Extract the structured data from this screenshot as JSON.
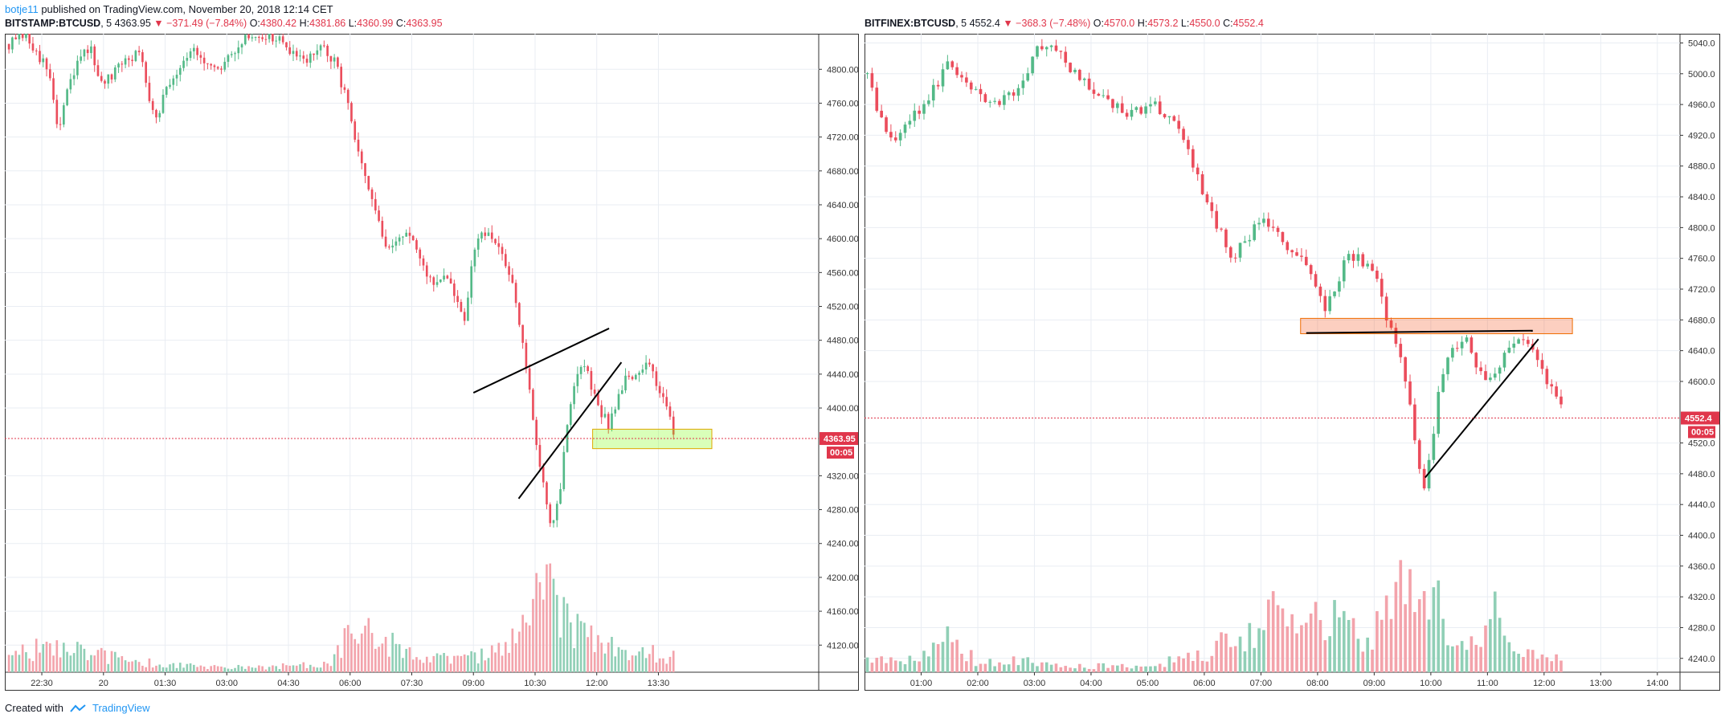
{
  "header": {
    "author": "botje11",
    "published": "published on TradingView.com, November 20, 2018 12:14 CET"
  },
  "footer": {
    "created_with": "Created with",
    "brand": "TradingView"
  },
  "colors": {
    "up": "#53b987",
    "down": "#eb4d5c",
    "up_vol": "#90cfb6",
    "down_vol": "#f3a3ab",
    "grid": "#e9edf3",
    "last_price": "#e0364b"
  },
  "chart_data": [
    {
      "type": "candlestick",
      "symbol": "BITSTAMP:BTCUSD",
      "interval": "5",
      "summary": {
        "last": "4363.95",
        "change": "−371.49 (−7.84%)",
        "open": "4380.42",
        "high": "4381.86",
        "low": "4360.99",
        "close": "4363.95"
      },
      "last_price_label": "4363.95",
      "countdown": "00:05",
      "y_ticks": [
        4800,
        4760,
        4720,
        4680,
        4640,
        4600,
        4560,
        4520,
        4480,
        4440,
        4400,
        4320,
        4280,
        4240,
        4200,
        4160,
        4120
      ],
      "y_tick_labels": [
        "4800.00",
        "4760.00",
        "4720.00",
        "4680.00",
        "4640.00",
        "4600.00",
        "4560.00",
        "4520.00",
        "4480.00",
        "4440.00",
        "4400.00",
        "4320.00",
        "4280.00",
        "4240.00",
        "4200.00",
        "4160.00",
        "4120.00"
      ],
      "x_ticks": [
        "22:30",
        "20",
        "01:30",
        "03:00",
        "04:30",
        "06:00",
        "07:30",
        "09:00",
        "10:30",
        "12:00",
        "13:30"
      ],
      "x_tick_hours": [
        -1.5,
        0,
        1.5,
        3,
        4.5,
        6,
        7.5,
        9,
        10.5,
        12,
        13.5
      ],
      "x_range_hours": [
        -2.4,
        17.4
      ],
      "y_range": [
        4088,
        4842
      ],
      "price_path": [
        [
          -2.3,
          4830
        ],
        [
          -1.9,
          4840
        ],
        [
          -1.6,
          4820
        ],
        [
          -1.3,
          4790
        ],
        [
          -1.1,
          4725
        ],
        [
          -0.9,
          4770
        ],
        [
          -0.6,
          4810
        ],
        [
          -0.3,
          4830
        ],
        [
          -0.1,
          4780
        ],
        [
          0.2,
          4790
        ],
        [
          0.5,
          4810
        ],
        [
          0.9,
          4820
        ],
        [
          1.1,
          4770
        ],
        [
          1.3,
          4745
        ],
        [
          1.5,
          4775
        ],
        [
          1.8,
          4800
        ],
        [
          2.0,
          4815
        ],
        [
          2.2,
          4830
        ],
        [
          2.4,
          4805
        ],
        [
          2.6,
          4800
        ],
        [
          2.8,
          4795
        ],
        [
          3.0,
          4810
        ],
        [
          3.3,
          4830
        ],
        [
          3.6,
          4840
        ],
        [
          4.0,
          4840
        ],
        [
          4.4,
          4830
        ],
        [
          4.7,
          4810
        ],
        [
          5.0,
          4815
        ],
        [
          5.3,
          4825
        ],
        [
          5.6,
          4810
        ],
        [
          5.9,
          4770
        ],
        [
          6.1,
          4720
        ],
        [
          6.3,
          4680
        ],
        [
          6.5,
          4650
        ],
        [
          6.7,
          4620
        ],
        [
          6.9,
          4580
        ],
        [
          7.1,
          4595
        ],
        [
          7.3,
          4610
        ],
        [
          7.5,
          4600
        ],
        [
          7.7,
          4570
        ],
        [
          7.9,
          4555
        ],
        [
          8.1,
          4545
        ],
        [
          8.3,
          4560
        ],
        [
          8.5,
          4540
        ],
        [
          8.7,
          4510
        ],
        [
          8.8,
          4495
        ],
        [
          8.9,
          4550
        ],
        [
          9.1,
          4600
        ],
        [
          9.3,
          4605
        ],
        [
          9.5,
          4595
        ],
        [
          9.7,
          4580
        ],
        [
          9.9,
          4560
        ],
        [
          10.1,
          4500
        ],
        [
          10.3,
          4445
        ],
        [
          10.45,
          4380
        ],
        [
          10.6,
          4335
        ],
        [
          10.75,
          4300
        ],
        [
          10.9,
          4260
        ],
        [
          11.1,
          4300
        ],
        [
          11.3,
          4390
        ],
        [
          11.5,
          4440
        ],
        [
          11.7,
          4450
        ],
        [
          11.9,
          4420
        ],
        [
          12.1,
          4395
        ],
        [
          12.3,
          4380
        ],
        [
          12.5,
          4410
        ],
        [
          12.7,
          4440
        ],
        [
          12.9,
          4430
        ],
        [
          13.1,
          4445
        ],
        [
          13.3,
          4455
        ],
        [
          13.5,
          4425
        ],
        [
          13.7,
          4405
        ],
        [
          13.9,
          4365
        ]
      ],
      "volume_profile": [
        [
          -2.3,
          0.25
        ],
        [
          -1.5,
          0.4
        ],
        [
          -0.5,
          0.35
        ],
        [
          0.5,
          0.2
        ],
        [
          2,
          0.1
        ],
        [
          4,
          0.08
        ],
        [
          5.5,
          0.15
        ],
        [
          6.2,
          0.9
        ],
        [
          6.8,
          0.5
        ],
        [
          7.5,
          0.3
        ],
        [
          8.5,
          0.2
        ],
        [
          9.5,
          0.3
        ],
        [
          10.3,
          0.7
        ],
        [
          10.8,
          1.6
        ],
        [
          11.1,
          0.9
        ],
        [
          11.6,
          0.7
        ],
        [
          12.2,
          0.4
        ],
        [
          12.8,
          0.35
        ],
        [
          13.5,
          0.3
        ],
        [
          13.9,
          0.25
        ]
      ],
      "annotations": {
        "rising_wedge_upper": [
          [
            9.0,
            4418
          ],
          [
            12.3,
            4494
          ]
        ],
        "rising_wedge_lower": [
          [
            10.1,
            4293
          ],
          [
            12.6,
            4454
          ]
        ],
        "support_zone": {
          "x": [
            11.9,
            14.8
          ],
          "y": [
            4352,
            4375
          ]
        }
      }
    },
    {
      "type": "candlestick",
      "symbol": "BITFINEX:BTCUSD",
      "interval": "5",
      "summary": {
        "last": "4552.4",
        "change": "−368.3 (−7.48%)",
        "open": "4570.0",
        "high": "4573.2",
        "low": "4550.0",
        "close": "4552.4"
      },
      "last_price_label": "4552.4",
      "countdown": "00:05",
      "y_ticks": [
        5040,
        5000,
        4960,
        4920,
        4880,
        4840,
        4800,
        4760,
        4720,
        4680,
        4640,
        4600,
        4520,
        4480,
        4440,
        4400,
        4360,
        4320,
        4280,
        4240
      ],
      "y_tick_labels": [
        "5040.0",
        "5000.0",
        "4960.0",
        "4920.0",
        "4880.0",
        "4840.0",
        "4800.0",
        "4760.0",
        "4720.0",
        "4680.0",
        "4640.0",
        "4600.0",
        "4520.0",
        "4480.0",
        "4440.0",
        "4400.0",
        "4360.0",
        "4320.0",
        "4280.0",
        "4240.0"
      ],
      "x_ticks": [
        "01:00",
        "02:00",
        "03:00",
        "04:00",
        "05:00",
        "06:00",
        "07:00",
        "08:00",
        "09:00",
        "10:00",
        "11:00",
        "12:00",
        "13:00",
        "14:00"
      ],
      "x_tick_hours": [
        1,
        2,
        3,
        4,
        5,
        6,
        7,
        8,
        9,
        10,
        11,
        12,
        13,
        14
      ],
      "x_range_hours": [
        0.0,
        14.4
      ],
      "y_range": [
        4222,
        5052
      ],
      "price_path": [
        [
          0.05,
          5000
        ],
        [
          0.2,
          4960
        ],
        [
          0.35,
          4930
        ],
        [
          0.5,
          4915
        ],
        [
          0.7,
          4930
        ],
        [
          0.9,
          4950
        ],
        [
          1.1,
          4965
        ],
        [
          1.3,
          4990
        ],
        [
          1.5,
          5020
        ],
        [
          1.7,
          4990
        ],
        [
          1.9,
          4975
        ],
        [
          2.1,
          4970
        ],
        [
          2.4,
          4965
        ],
        [
          2.7,
          4975
        ],
        [
          2.9,
          5010
        ],
        [
          3.1,
          5040
        ],
        [
          3.3,
          5030
        ],
        [
          3.5,
          5025
        ],
        [
          3.7,
          5000
        ],
        [
          3.9,
          4990
        ],
        [
          4.1,
          4970
        ],
        [
          4.3,
          4965
        ],
        [
          4.6,
          4950
        ],
        [
          4.9,
          4955
        ],
        [
          5.1,
          4965
        ],
        [
          5.3,
          4945
        ],
        [
          5.5,
          4930
        ],
        [
          5.7,
          4900
        ],
        [
          5.9,
          4860
        ],
        [
          6.1,
          4820
        ],
        [
          6.3,
          4790
        ],
        [
          6.5,
          4760
        ],
        [
          6.7,
          4780
        ],
        [
          6.9,
          4800
        ],
        [
          7.1,
          4810
        ],
        [
          7.3,
          4790
        ],
        [
          7.5,
          4770
        ],
        [
          7.7,
          4760
        ],
        [
          7.9,
          4740
        ],
        [
          8.0,
          4720
        ],
        [
          8.1,
          4690
        ],
        [
          8.3,
          4720
        ],
        [
          8.5,
          4760
        ],
        [
          8.7,
          4765
        ],
        [
          8.9,
          4745
        ],
        [
          9.1,
          4720
        ],
        [
          9.2,
          4690
        ],
        [
          9.35,
          4650
        ],
        [
          9.5,
          4620
        ],
        [
          9.65,
          4560
        ],
        [
          9.8,
          4490
        ],
        [
          9.9,
          4460
        ],
        [
          10.0,
          4510
        ],
        [
          10.15,
          4590
        ],
        [
          10.35,
          4640
        ],
        [
          10.6,
          4660
        ],
        [
          10.8,
          4620
        ],
        [
          11.0,
          4600
        ],
        [
          11.2,
          4610
        ],
        [
          11.4,
          4650
        ],
        [
          11.6,
          4660
        ],
        [
          11.75,
          4650
        ],
        [
          11.9,
          4620
        ],
        [
          12.05,
          4600
        ],
        [
          12.2,
          4580
        ],
        [
          12.35,
          4555
        ]
      ],
      "volume_profile": [
        [
          0.05,
          0.2
        ],
        [
          1,
          0.25
        ],
        [
          1.5,
          0.55
        ],
        [
          2,
          0.15
        ],
        [
          3,
          0.2
        ],
        [
          4,
          0.1
        ],
        [
          5,
          0.1
        ],
        [
          6,
          0.3
        ],
        [
          6.8,
          0.7
        ],
        [
          7.2,
          0.9
        ],
        [
          7.8,
          0.6
        ],
        [
          8.3,
          1.2
        ],
        [
          8.8,
          0.6
        ],
        [
          9.3,
          0.9
        ],
        [
          9.6,
          1.8
        ],
        [
          9.85,
          1.5
        ],
        [
          10.05,
          1.2
        ],
        [
          10.3,
          0.7
        ],
        [
          10.8,
          0.4
        ],
        [
          11.1,
          1.3
        ],
        [
          11.5,
          0.3
        ],
        [
          12.35,
          0.2
        ]
      ],
      "annotations": {
        "resistance_line": [
          [
            7.8,
            4663
          ],
          [
            11.8,
            4666
          ]
        ],
        "resistance_zone": {
          "x": [
            7.7,
            12.5
          ],
          "y": [
            4662,
            4682
          ]
        },
        "ascending_line": [
          [
            9.9,
            4475
          ],
          [
            11.9,
            4655
          ]
        ]
      }
    }
  ]
}
